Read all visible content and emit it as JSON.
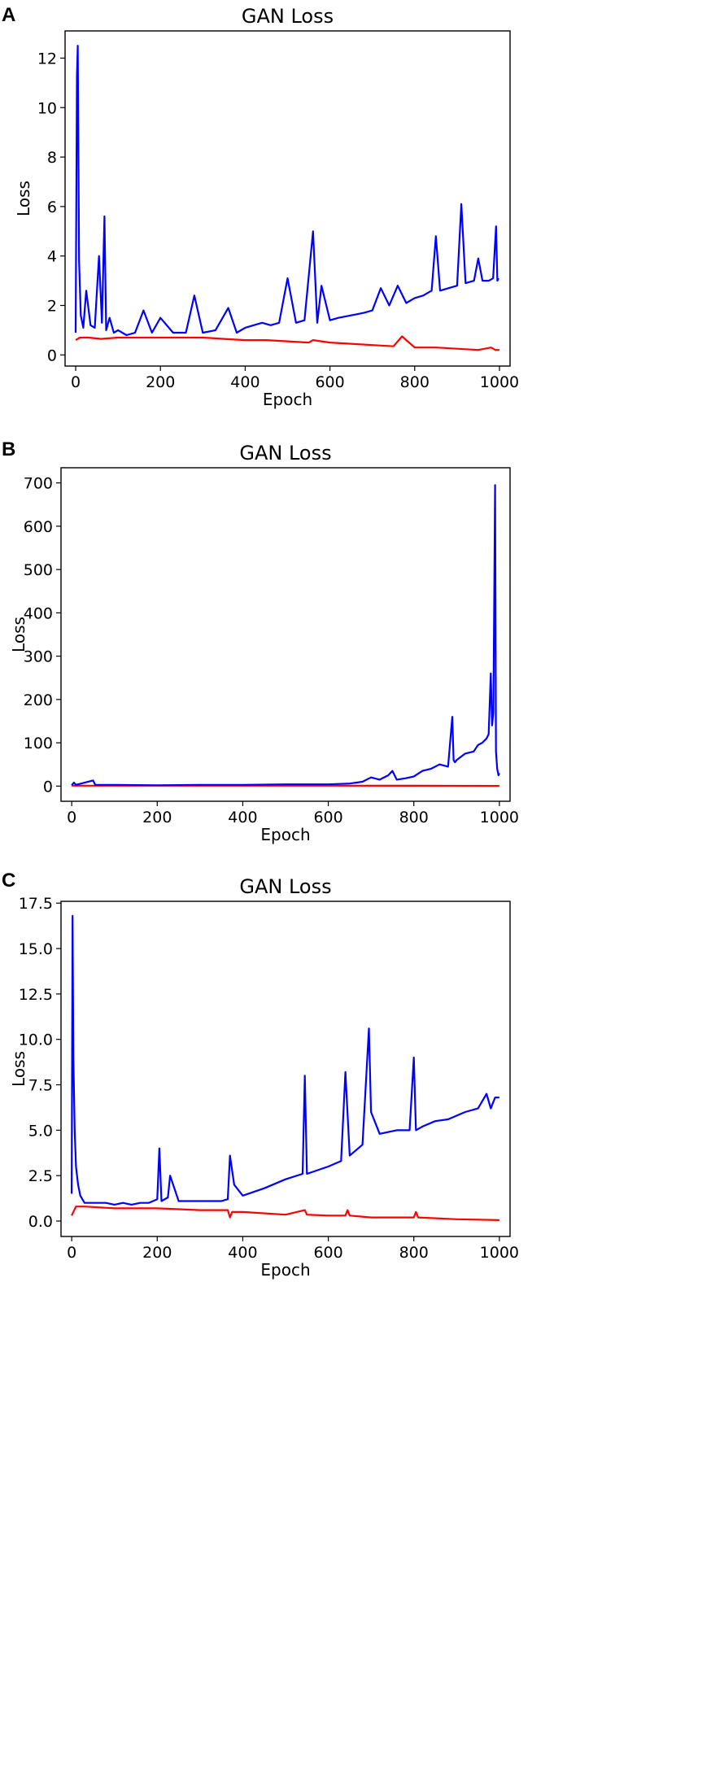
{
  "chart_data": [
    {
      "panel": "A",
      "type": "line",
      "title": "GAN Loss",
      "xlabel": "Epoch",
      "ylabel": "Loss",
      "xlim": [
        -25,
        1025
      ],
      "ylim": [
        -0.45,
        13.1
      ],
      "xticks": [
        0,
        200,
        400,
        600,
        800,
        1000
      ],
      "yticks": [
        0,
        2,
        4,
        6,
        8,
        10,
        12
      ],
      "ytick_labels": [
        "0",
        "2",
        "4",
        "6",
        "8",
        "10",
        "12"
      ],
      "series": [
        {
          "color": "#0000ff",
          "x": [
            0,
            3,
            5,
            8,
            12,
            18,
            25,
            35,
            45,
            55,
            62,
            68,
            72,
            80,
            90,
            100,
            120,
            140,
            160,
            180,
            200,
            230,
            260,
            280,
            300,
            330,
            360,
            380,
            400,
            420,
            440,
            460,
            480,
            500,
            520,
            540,
            560,
            570,
            580,
            600,
            620,
            650,
            680,
            700,
            720,
            740,
            760,
            780,
            800,
            820,
            840,
            850,
            860,
            880,
            900,
            910,
            920,
            940,
            950,
            960,
            975,
            985,
            992,
            995,
            998
          ],
          "y": [
            0.9,
            11.3,
            12.5,
            3.8,
            1.6,
            1.1,
            2.6,
            1.2,
            1.1,
            4.0,
            1.3,
            5.6,
            1.0,
            1.5,
            0.9,
            1.0,
            0.8,
            0.9,
            1.8,
            0.9,
            1.5,
            0.9,
            0.9,
            2.4,
            0.9,
            1.0,
            1.9,
            0.9,
            1.1,
            1.2,
            1.3,
            1.2,
            1.3,
            3.1,
            1.3,
            1.4,
            5.0,
            1.3,
            2.8,
            1.4,
            1.5,
            1.6,
            1.7,
            1.8,
            2.7,
            2.0,
            2.8,
            2.1,
            2.3,
            2.4,
            2.6,
            4.8,
            2.6,
            2.7,
            2.8,
            6.1,
            2.9,
            3.0,
            3.9,
            3.0,
            3.0,
            3.1,
            5.2,
            3.0,
            3.1
          ]
        },
        {
          "color": "#ff0000",
          "x": [
            0,
            10,
            30,
            60,
            100,
            150,
            200,
            250,
            300,
            350,
            400,
            450,
            500,
            550,
            560,
            600,
            650,
            700,
            750,
            770,
            800,
            850,
            900,
            950,
            980,
            990,
            1000
          ],
          "y": [
            0.6,
            0.7,
            0.7,
            0.65,
            0.7,
            0.7,
            0.7,
            0.7,
            0.7,
            0.65,
            0.6,
            0.6,
            0.55,
            0.5,
            0.6,
            0.5,
            0.45,
            0.4,
            0.35,
            0.75,
            0.3,
            0.3,
            0.25,
            0.2,
            0.3,
            0.2,
            0.2
          ]
        }
      ]
    },
    {
      "panel": "B",
      "type": "line",
      "title": "GAN Loss",
      "xlabel": "Epoch",
      "ylabel": "Loss",
      "xlim": [
        -25,
        1025
      ],
      "ylim": [
        -35,
        735
      ],
      "xticks": [
        0,
        200,
        400,
        600,
        800,
        1000
      ],
      "yticks": [
        0,
        100,
        200,
        300,
        400,
        500,
        600,
        700
      ],
      "ytick_labels": [
        "0",
        "100",
        "200",
        "300",
        "400",
        "500",
        "600",
        "700"
      ],
      "series": [
        {
          "color": "#0000ff",
          "x": [
            0,
            5,
            10,
            50,
            55,
            100,
            200,
            300,
            400,
            500,
            600,
            650,
            680,
            700,
            720,
            740,
            750,
            760,
            780,
            800,
            820,
            840,
            860,
            880,
            890,
            893,
            896,
            900,
            920,
            940,
            950,
            960,
            970,
            975,
            980,
            983,
            986,
            990,
            992,
            995,
            998,
            1000
          ],
          "y": [
            2,
            8,
            3,
            13,
            3,
            3,
            2,
            3,
            3,
            4,
            4,
            6,
            10,
            20,
            15,
            25,
            35,
            15,
            18,
            22,
            35,
            40,
            50,
            45,
            160,
            60,
            55,
            60,
            75,
            80,
            95,
            100,
            110,
            120,
            260,
            140,
            170,
            695,
            80,
            40,
            25,
            30
          ]
        },
        {
          "color": "#ff0000",
          "x": [
            0,
            200,
            400,
            600,
            800,
            1000
          ],
          "y": [
            1,
            1,
            1,
            1,
            0.8,
            0.5
          ]
        }
      ]
    },
    {
      "panel": "C",
      "type": "line",
      "title": "GAN Loss",
      "xlabel": "Epoch",
      "ylabel": "Loss",
      "xlim": [
        -25,
        1025
      ],
      "ylim": [
        -0.85,
        17.6
      ],
      "xticks": [
        0,
        200,
        400,
        600,
        800,
        1000
      ],
      "yticks": [
        0,
        2.5,
        5,
        7.5,
        10,
        12.5,
        15,
        17.5
      ],
      "ytick_labels": [
        "0.0",
        "2.5",
        "5.0",
        "7.5",
        "10.0",
        "12.5",
        "15.0",
        "17.5"
      ],
      "series": [
        {
          "color": "#0000ff",
          "x": [
            0,
            2,
            4,
            7,
            10,
            15,
            20,
            30,
            50,
            80,
            100,
            120,
            140,
            160,
            180,
            200,
            205,
            210,
            225,
            230,
            250,
            300,
            350,
            365,
            370,
            380,
            400,
            450,
            500,
            540,
            545,
            550,
            600,
            630,
            640,
            650,
            680,
            695,
            700,
            720,
            760,
            790,
            800,
            805,
            820,
            850,
            880,
            900,
            920,
            950,
            970,
            980,
            990,
            1000
          ],
          "y": [
            1.5,
            16.8,
            9.0,
            5.0,
            3.0,
            2.0,
            1.4,
            1.0,
            1.0,
            1.0,
            0.9,
            1.0,
            0.9,
            1.0,
            1.0,
            1.2,
            4.0,
            1.1,
            1.3,
            2.5,
            1.1,
            1.1,
            1.1,
            1.2,
            3.6,
            2.0,
            1.4,
            1.8,
            2.3,
            2.6,
            8.0,
            2.6,
            3.0,
            3.3,
            8.2,
            3.6,
            4.2,
            10.6,
            6.0,
            4.8,
            5.0,
            5.0,
            9.0,
            5.0,
            5.2,
            5.5,
            5.6,
            5.8,
            6.0,
            6.2,
            7.0,
            6.2,
            6.8,
            6.8
          ]
        },
        {
          "color": "#ff0000",
          "x": [
            0,
            10,
            30,
            100,
            200,
            300,
            365,
            370,
            375,
            400,
            500,
            545,
            550,
            600,
            640,
            645,
            650,
            700,
            800,
            805,
            810,
            900,
            1000
          ],
          "y": [
            0.3,
            0.8,
            0.8,
            0.7,
            0.7,
            0.6,
            0.6,
            0.2,
            0.5,
            0.5,
            0.35,
            0.6,
            0.35,
            0.3,
            0.3,
            0.6,
            0.3,
            0.2,
            0.2,
            0.5,
            0.2,
            0.1,
            0.05
          ]
        }
      ]
    }
  ]
}
